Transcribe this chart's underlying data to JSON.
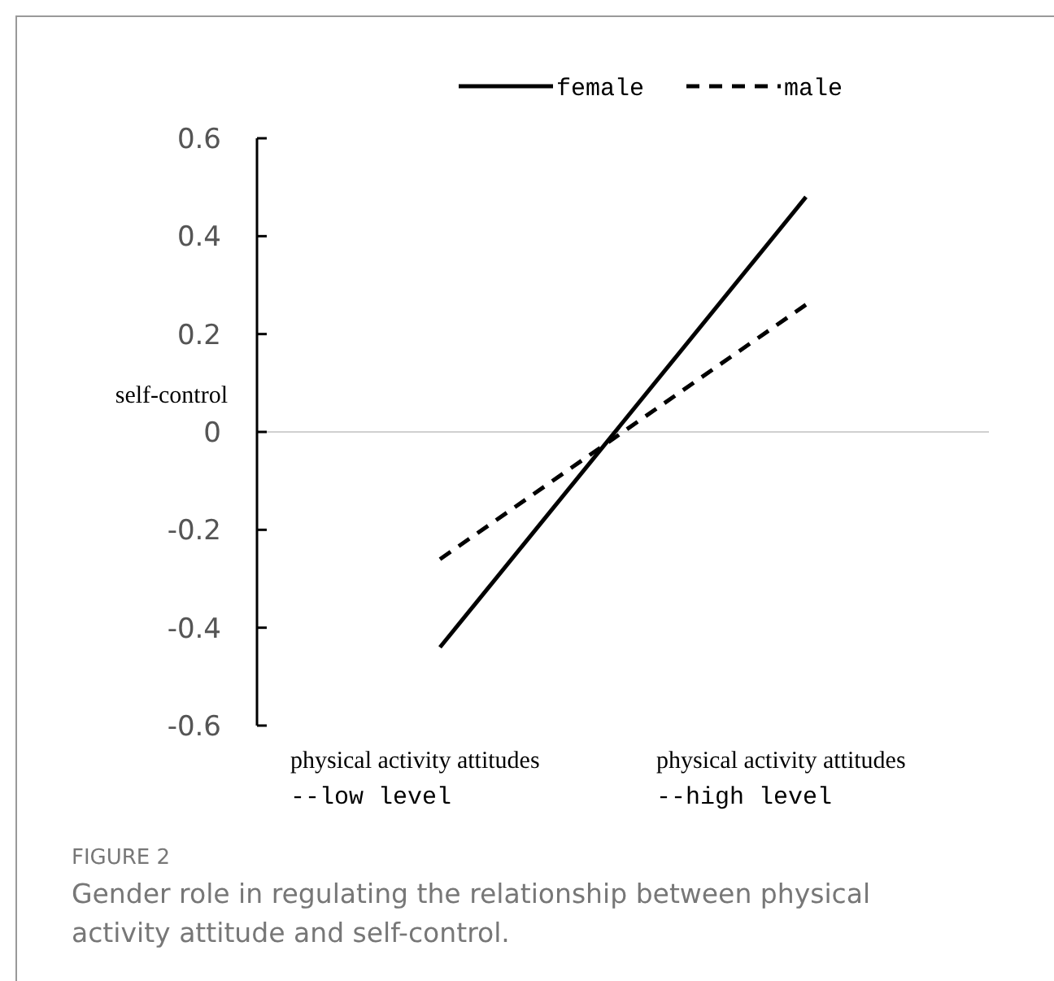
{
  "chart_data": {
    "type": "line",
    "categories": [
      "physical activity attitudes\n--low level",
      "physical activity attitudes\n--high level"
    ],
    "ylabel": "self-control",
    "ylim": [
      -0.6,
      0.6
    ],
    "yticks": [
      {
        "value": -0.6,
        "label": "-0.6"
      },
      {
        "value": -0.4,
        "label": "-0.4"
      },
      {
        "value": -0.2,
        "label": "-0.2"
      },
      0,
      {
        "value": 0.2,
        "label": "0.2"
      },
      {
        "value": 0.4,
        "label": "0.4"
      },
      {
        "value": 0.6,
        "label": "0.6"
      }
    ],
    "series": [
      {
        "name": "female",
        "color": "#000000",
        "line_style": "solid",
        "values": [
          -0.44,
          0.48
        ]
      },
      {
        "name": "male",
        "color": "#000000",
        "line_style": "dashed",
        "values": [
          -0.26,
          0.26
        ]
      }
    ],
    "ref_lines": [
      {
        "axis": "y",
        "value": 0,
        "color": "#d0d0d0"
      }
    ],
    "legend": "top",
    "grid": false,
    "marker": "none",
    "annotations": [
      "FIGURE 2",
      "Gender role in regulating the relationship between physical activity attitude and self-control."
    ]
  }
}
